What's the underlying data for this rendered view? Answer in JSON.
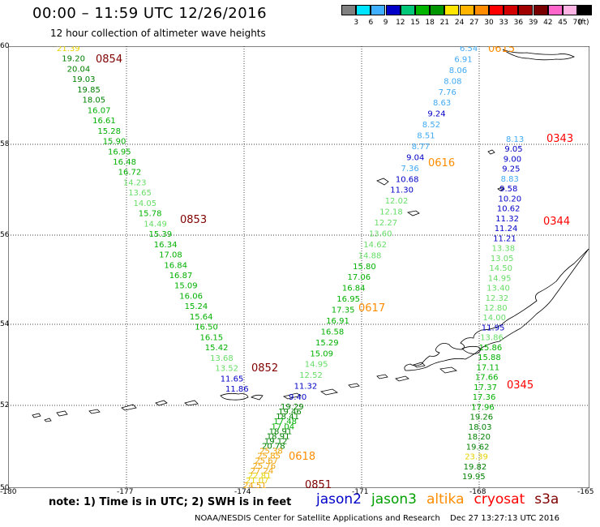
{
  "header": {
    "title": "00:00 – 11:59 UTC 12/26/2016",
    "subtitle": "12 hour collection of altimeter wave heights"
  },
  "colorbar": {
    "colors": [
      "#808080",
      "#00e5ff",
      "#3fb0ff",
      "#0000c8",
      "#00c878",
      "#00b400",
      "#009600",
      "#ffe600",
      "#ffb400",
      "#ff8c00",
      "#ff0000",
      "#d20000",
      "#a00000",
      "#780000",
      "#ff66cc",
      "#ffb4e6",
      "#000000"
    ],
    "labels": [
      "3",
      "6",
      "9",
      "12",
      "15",
      "18",
      "21",
      "24",
      "27",
      "30",
      "33",
      "36",
      "39",
      "42",
      "45",
      "70"
    ],
    "unit": "(ft)"
  },
  "axes": {
    "lat_labels": [
      "60",
      "58",
      "56",
      "54",
      "52",
      "50"
    ],
    "lon_labels": [
      "-180",
      "-177",
      "-174",
      "-171",
      "-168",
      "-165"
    ]
  },
  "passes": [
    {
      "id": "0854",
      "color": "#800000"
    },
    {
      "id": "0853",
      "color": "#800000"
    },
    {
      "id": "0852",
      "color": "#800000"
    },
    {
      "id": "0851",
      "color": "#800000"
    },
    {
      "id": "0615",
      "color": "#ff8c00"
    },
    {
      "id": "0616",
      "color": "#ff8c00"
    },
    {
      "id": "0617",
      "color": "#ff8c00"
    },
    {
      "id": "0618",
      "color": "#ff8c00"
    },
    {
      "id": "0343",
      "color": "#ff0000"
    },
    {
      "id": "0344",
      "color": "#ff0000"
    },
    {
      "id": "0345",
      "color": "#ff0000"
    }
  ],
  "tracks": {
    "track1": [
      "21.39",
      "19.20",
      "20.04",
      "19.03",
      "19.85",
      "18.05",
      "16.07",
      "16.61",
      "15.28",
      "15.90",
      "16.95",
      "16.48",
      "16.72",
      "14.23",
      "13.65",
      "14.05",
      "15.78",
      "14.49",
      "15.39",
      "16.34",
      "17.08",
      "16.84",
      "16.87",
      "15.09",
      "16.06",
      "15.24",
      "15.64",
      "16.50",
      "16.15",
      "15.42",
      "13.68",
      "13.52",
      "11.65",
      "11.86"
    ],
    "track2": [
      "6.54",
      "6.91",
      "8.06",
      "8.08",
      "7.76",
      "8.63",
      "9.24",
      "8.52",
      "8.51",
      "8.77",
      "9.04",
      "7.36",
      "10.68",
      "11.30",
      "12.02",
      "12.18",
      "12.27",
      "13.60",
      "14.62",
      "14.88",
      "15.80",
      "17.06",
      "16.84",
      "16.95",
      "17.35",
      "16.91",
      "16.58",
      "15.29",
      "15.09",
      "14.95",
      "12.52",
      "11.32",
      "9.40",
      "19.29",
      "19.46",
      "18.41",
      "17.48",
      "17.04",
      "18.91",
      "18.91",
      "19.12",
      "20.78",
      "25.38",
      "25.85",
      "25.67",
      "25.76",
      "27.24",
      "22.81",
      "21.07",
      "24.51"
    ],
    "track3": [
      "8.13",
      "9.05",
      "9.00",
      "9.25",
      "8.83",
      "9.58",
      "10.20",
      "10.62",
      "11.32",
      "11.24",
      "11.21",
      "13.38",
      "13.05",
      "14.50",
      "14.95",
      "13.40",
      "12.32",
      "12.80",
      "14.00",
      "11.95",
      "13.86",
      "15.86",
      "15.88",
      "17.11",
      "17.66",
      "17.37",
      "17.36",
      "17.96",
      "19.26",
      "18.03",
      "18.20",
      "19.62",
      "23.39",
      "19.82",
      "19.95"
    ]
  },
  "footer": {
    "note": "note:  1) Time is in UTC;  2) SWH is in feet",
    "satellites": [
      {
        "name": "jason2",
        "color": "#0000c8"
      },
      {
        "name": "jason3",
        "color": "#00a000"
      },
      {
        "name": "altika",
        "color": "#ff8c00"
      },
      {
        "name": "cryosat",
        "color": "#ff0000"
      },
      {
        "name": "s3a",
        "color": "#800000"
      }
    ],
    "credit": "NOAA/NESDIS Center for Satellite Applications and Research",
    "stamp": "Dec 27 13:27:13 UTC 2016"
  }
}
